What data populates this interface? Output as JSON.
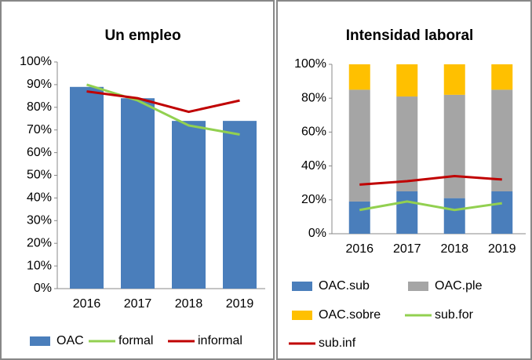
{
  "chart_data": [
    {
      "type": "bar",
      "title": "Un empleo",
      "categories": [
        "2016",
        "2017",
        "2018",
        "2019"
      ],
      "series": [
        {
          "name": "OAC",
          "type": "bar",
          "color": "#4a7ebb",
          "values": [
            89,
            84,
            74,
            74
          ]
        },
        {
          "name": "formal",
          "type": "line",
          "color": "#92d050",
          "values": [
            90,
            83,
            72,
            68
          ]
        },
        {
          "name": "informal",
          "type": "line",
          "color": "#c00000",
          "values": [
            87,
            84,
            78,
            83
          ]
        }
      ],
      "ylim": [
        0,
        100
      ],
      "yticks": [
        {
          "value": 0,
          "label": "0%"
        },
        {
          "value": 10,
          "label": "10%"
        },
        {
          "value": 20,
          "label": "20%"
        },
        {
          "value": 30,
          "label": "30%"
        },
        {
          "value": 40,
          "label": "40%"
        },
        {
          "value": 50,
          "label": "50%"
        },
        {
          "value": 60,
          "label": "60%"
        },
        {
          "value": 70,
          "label": "70%"
        },
        {
          "value": 80,
          "label": "80%"
        },
        {
          "value": 90,
          "label": "90%"
        },
        {
          "value": 100,
          "label": "100%"
        }
      ],
      "legend": "bottom"
    },
    {
      "type": "stacked_bar",
      "title": "Intensidad laboral",
      "categories": [
        "2016",
        "2017",
        "2018",
        "2019"
      ],
      "series": [
        {
          "name": "OAC.sub",
          "type": "bar",
          "color": "#4a7ebb",
          "values": [
            19,
            25,
            21,
            25
          ]
        },
        {
          "name": "OAC.ple",
          "type": "bar",
          "color": "#a5a5a5",
          "values": [
            66,
            56,
            61,
            60
          ]
        },
        {
          "name": "OAC.sobre",
          "type": "bar",
          "color": "#ffc000",
          "values": [
            15,
            19,
            18,
            15
          ]
        },
        {
          "name": "sub.for",
          "type": "line",
          "color": "#92d050",
          "values": [
            14,
            19,
            14,
            18
          ]
        },
        {
          "name": "sub.inf",
          "type": "line",
          "color": "#c00000",
          "values": [
            29,
            31,
            34,
            32
          ]
        }
      ],
      "ylim": [
        0,
        100
      ],
      "yticks": [
        {
          "value": 0,
          "label": "0%"
        },
        {
          "value": 20,
          "label": "20%"
        },
        {
          "value": 40,
          "label": "40%"
        },
        {
          "value": 60,
          "label": "60%"
        },
        {
          "value": 80,
          "label": "80%"
        },
        {
          "value": 100,
          "label": "100%"
        }
      ],
      "legend": "bottom"
    }
  ]
}
